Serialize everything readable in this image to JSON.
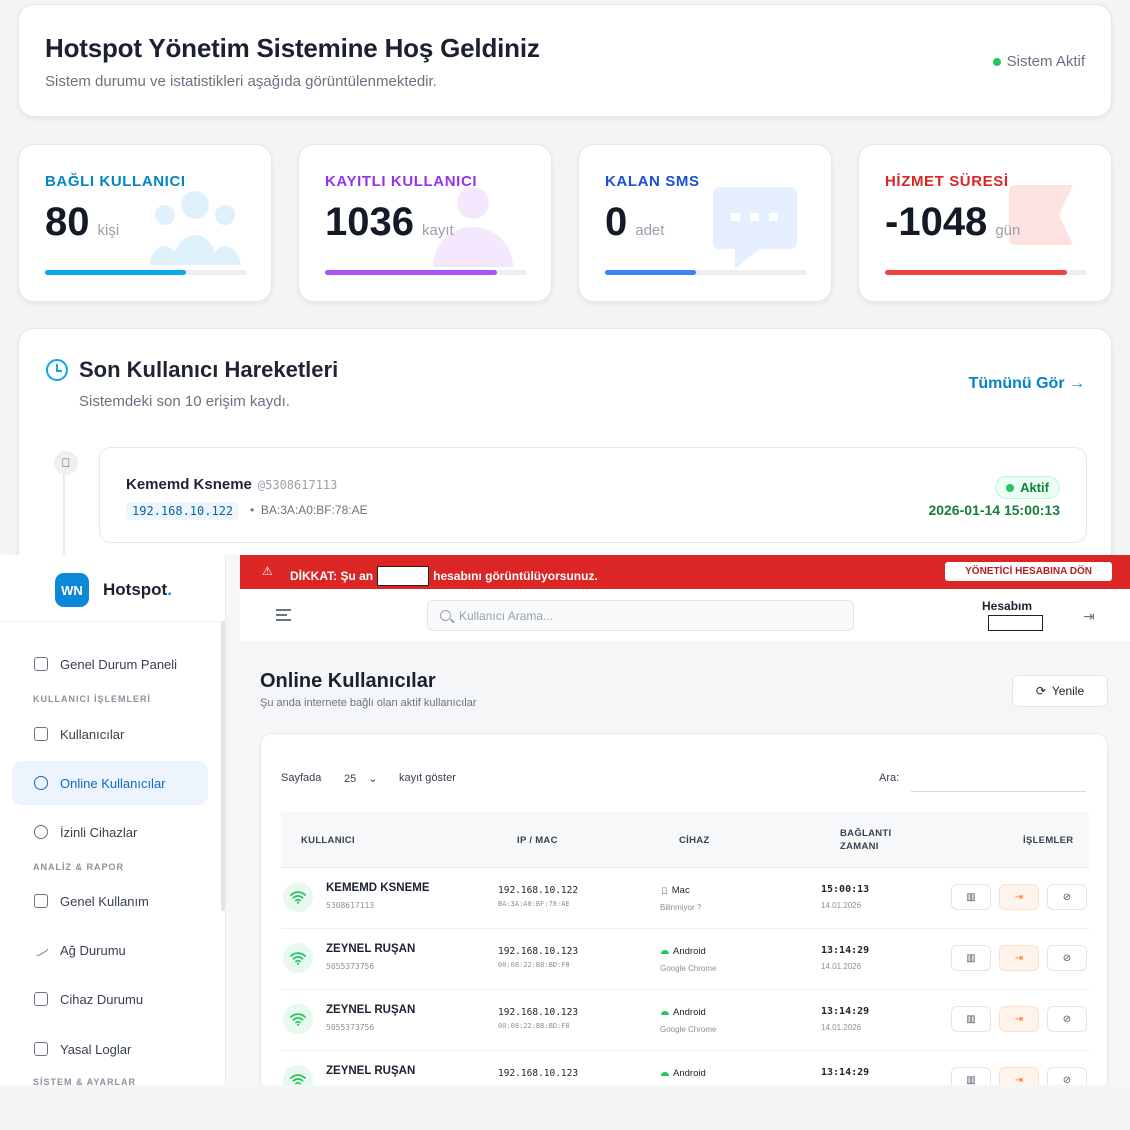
{
  "welcome": {
    "title": "Hotspot Yönetim Sistemine Hoş Geldiniz",
    "subtitle": "Sistem durumu ve istatistikleri aşağıda görüntülenmektedir.",
    "status": "Sistem Aktif",
    "status_color": "#22c55e"
  },
  "stats": [
    {
      "label": "BAĞLI KULLANICI",
      "value": "80",
      "unit": "kişi",
      "color": "#0ea5e9",
      "progress": 0.7,
      "icon": "users-icon"
    },
    {
      "label": "KAYITLI KULLANICI",
      "value": "1036",
      "unit": "kayıt",
      "color": "#a855f7",
      "progress": 0.85,
      "icon": "user-icon"
    },
    {
      "label": "KALAN SMS",
      "value": "0",
      "unit": "adet",
      "color": "#3b82f6",
      "progress": 0.45,
      "icon": "sms-icon"
    },
    {
      "label": "HİZMET SÜRESİ",
      "value": "-1048",
      "unit": "gün",
      "color": "#ef4444",
      "progress": 0.9,
      "icon": "flag-icon"
    }
  ],
  "activity": {
    "title": "Son Kullanıcı Hareketleri",
    "subtitle": "Sistemdeki son 10 erişim kaydı.",
    "view_all": "Tümünü Gör →",
    "entry": {
      "name": "Kememd Ksneme",
      "phone": "@5308617113",
      "ip": "192.168.10.122",
      "mac": "BA:3A:A0:BF:78:AE",
      "status": "Aktif",
      "datetime": "2026-01-14 15:00:13"
    }
  },
  "overlay": {
    "brand": "Hotspot",
    "brand_dot": ".",
    "logo": "WN",
    "nav": {
      "dashboard": "Genel Durum Paneli",
      "section_users": "KULLANICI İŞLEMLERİ",
      "users": "Kullanıcılar",
      "online": "Online Kullanıcılar",
      "devices": "İzinli Cihazlar",
      "section_reports": "ANALİZ & RAPOR",
      "usage": "Genel Kullanım",
      "network": "Ağ Durumu",
      "device_status": "Cihaz Durumu",
      "logs": "Yasal Loglar",
      "section_settings": "SİSTEM & AYARLAR"
    },
    "warning": {
      "prefix": "DİKKAT: Şu an",
      "suffix": "hesabını görüntülüyorsunuz.",
      "button": "YÖNETİCİ HESABINA DÖN"
    },
    "search_placeholder": "Kullanıcı Arama...",
    "account": "Hesabım",
    "page_title": "Online Kullanıcılar",
    "page_subtitle": "Şu anda internete bağlı olan aktif kullanıcılar",
    "refresh": "Yenile",
    "table": {
      "per_page_label": "Sayfada",
      "per_page_value": "25",
      "per_page_suffix": "kayıt göster",
      "search_label": "Ara:",
      "headers": [
        "KULLANICI",
        "IP / MAC",
        "CİHAZ",
        "BAĞLANTI",
        "ZAMANI",
        "İŞLEMLER"
      ],
      "rows": [
        {
          "name": "KEMEMD KSNEME",
          "phone": "5308617113",
          "ip": "192.168.10.122",
          "mac": "BA:3A:A0:BF:78:AE",
          "os": "Mac",
          "browser": "Bilinmiyor ?",
          "time": "15:00:13",
          "date": "14.01.2026"
        },
        {
          "name": "ZEYNEL RUŞAN",
          "phone": "5055373756",
          "ip": "192.168.10.123",
          "mac": "00:08:22:B8:BD:F8",
          "os": "Android",
          "browser": "Google Chrome",
          "time": "13:14:29",
          "date": "14.01.2026"
        },
        {
          "name": "ZEYNEL RUŞAN",
          "phone": "5055373756",
          "ip": "192.168.10.123",
          "mac": "00:08:22:B8:BD:F8",
          "os": "Android",
          "browser": "Google Chrome",
          "time": "13:14:29",
          "date": "14.01.2026"
        },
        {
          "name": "ZEYNEL RUŞAN",
          "phone": "",
          "ip": "192.168.10.123",
          "mac": "",
          "os": "Android",
          "browser": "",
          "time": "13:14:29",
          "date": ""
        }
      ]
    }
  }
}
